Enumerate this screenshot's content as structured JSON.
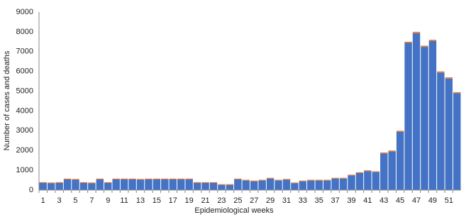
{
  "chart_data": {
    "type": "stacked_bar",
    "x_label": "Epidemiological weeks",
    "y_label": "Number of cases and deaths",
    "categories": [
      "1",
      null,
      "3",
      null,
      "5",
      null,
      "7",
      null,
      "9",
      null,
      "11",
      null,
      "13",
      null,
      "15",
      null,
      "17",
      null,
      "19",
      null,
      "21",
      null,
      "23",
      null,
      "25",
      null,
      "27",
      null,
      "29",
      null,
      "31",
      null,
      "33",
      null,
      "35",
      null,
      "37",
      null,
      "39",
      null,
      "41",
      null,
      "43",
      null,
      "45",
      null,
      "47",
      null,
      "49",
      null,
      "51",
      null
    ],
    "series": [
      {
        "color": "#4472c4",
        "values": [
          360,
          340,
          360,
          540,
          520,
          360,
          340,
          540,
          360,
          540,
          540,
          540,
          520,
          540,
          540,
          540,
          540,
          540,
          540,
          360,
          360,
          360,
          260,
          260,
          540,
          480,
          440,
          480,
          580,
          480,
          520,
          340,
          440,
          480,
          480,
          480,
          580,
          580,
          740,
          860,
          960,
          910,
          1850,
          1950,
          2940,
          7440,
          7930,
          7240,
          7540,
          5940,
          5640,
          4900
        ]
      },
      {
        "color": "#ed7d31",
        "values": [
          40,
          40,
          40,
          40,
          40,
          40,
          40,
          40,
          40,
          40,
          40,
          40,
          40,
          40,
          40,
          40,
          40,
          40,
          40,
          40,
          40,
          40,
          40,
          40,
          40,
          40,
          40,
          40,
          40,
          40,
          40,
          40,
          40,
          40,
          40,
          40,
          40,
          40,
          40,
          40,
          40,
          40,
          50,
          50,
          60,
          60,
          70,
          60,
          60,
          60,
          60,
          50
        ]
      }
    ],
    "ylim": [
      0,
      9000
    ],
    "yticks": [
      0,
      1000,
      2000,
      3000,
      4000,
      5000,
      6000,
      7000,
      8000,
      9000
    ],
    "grid": false
  }
}
